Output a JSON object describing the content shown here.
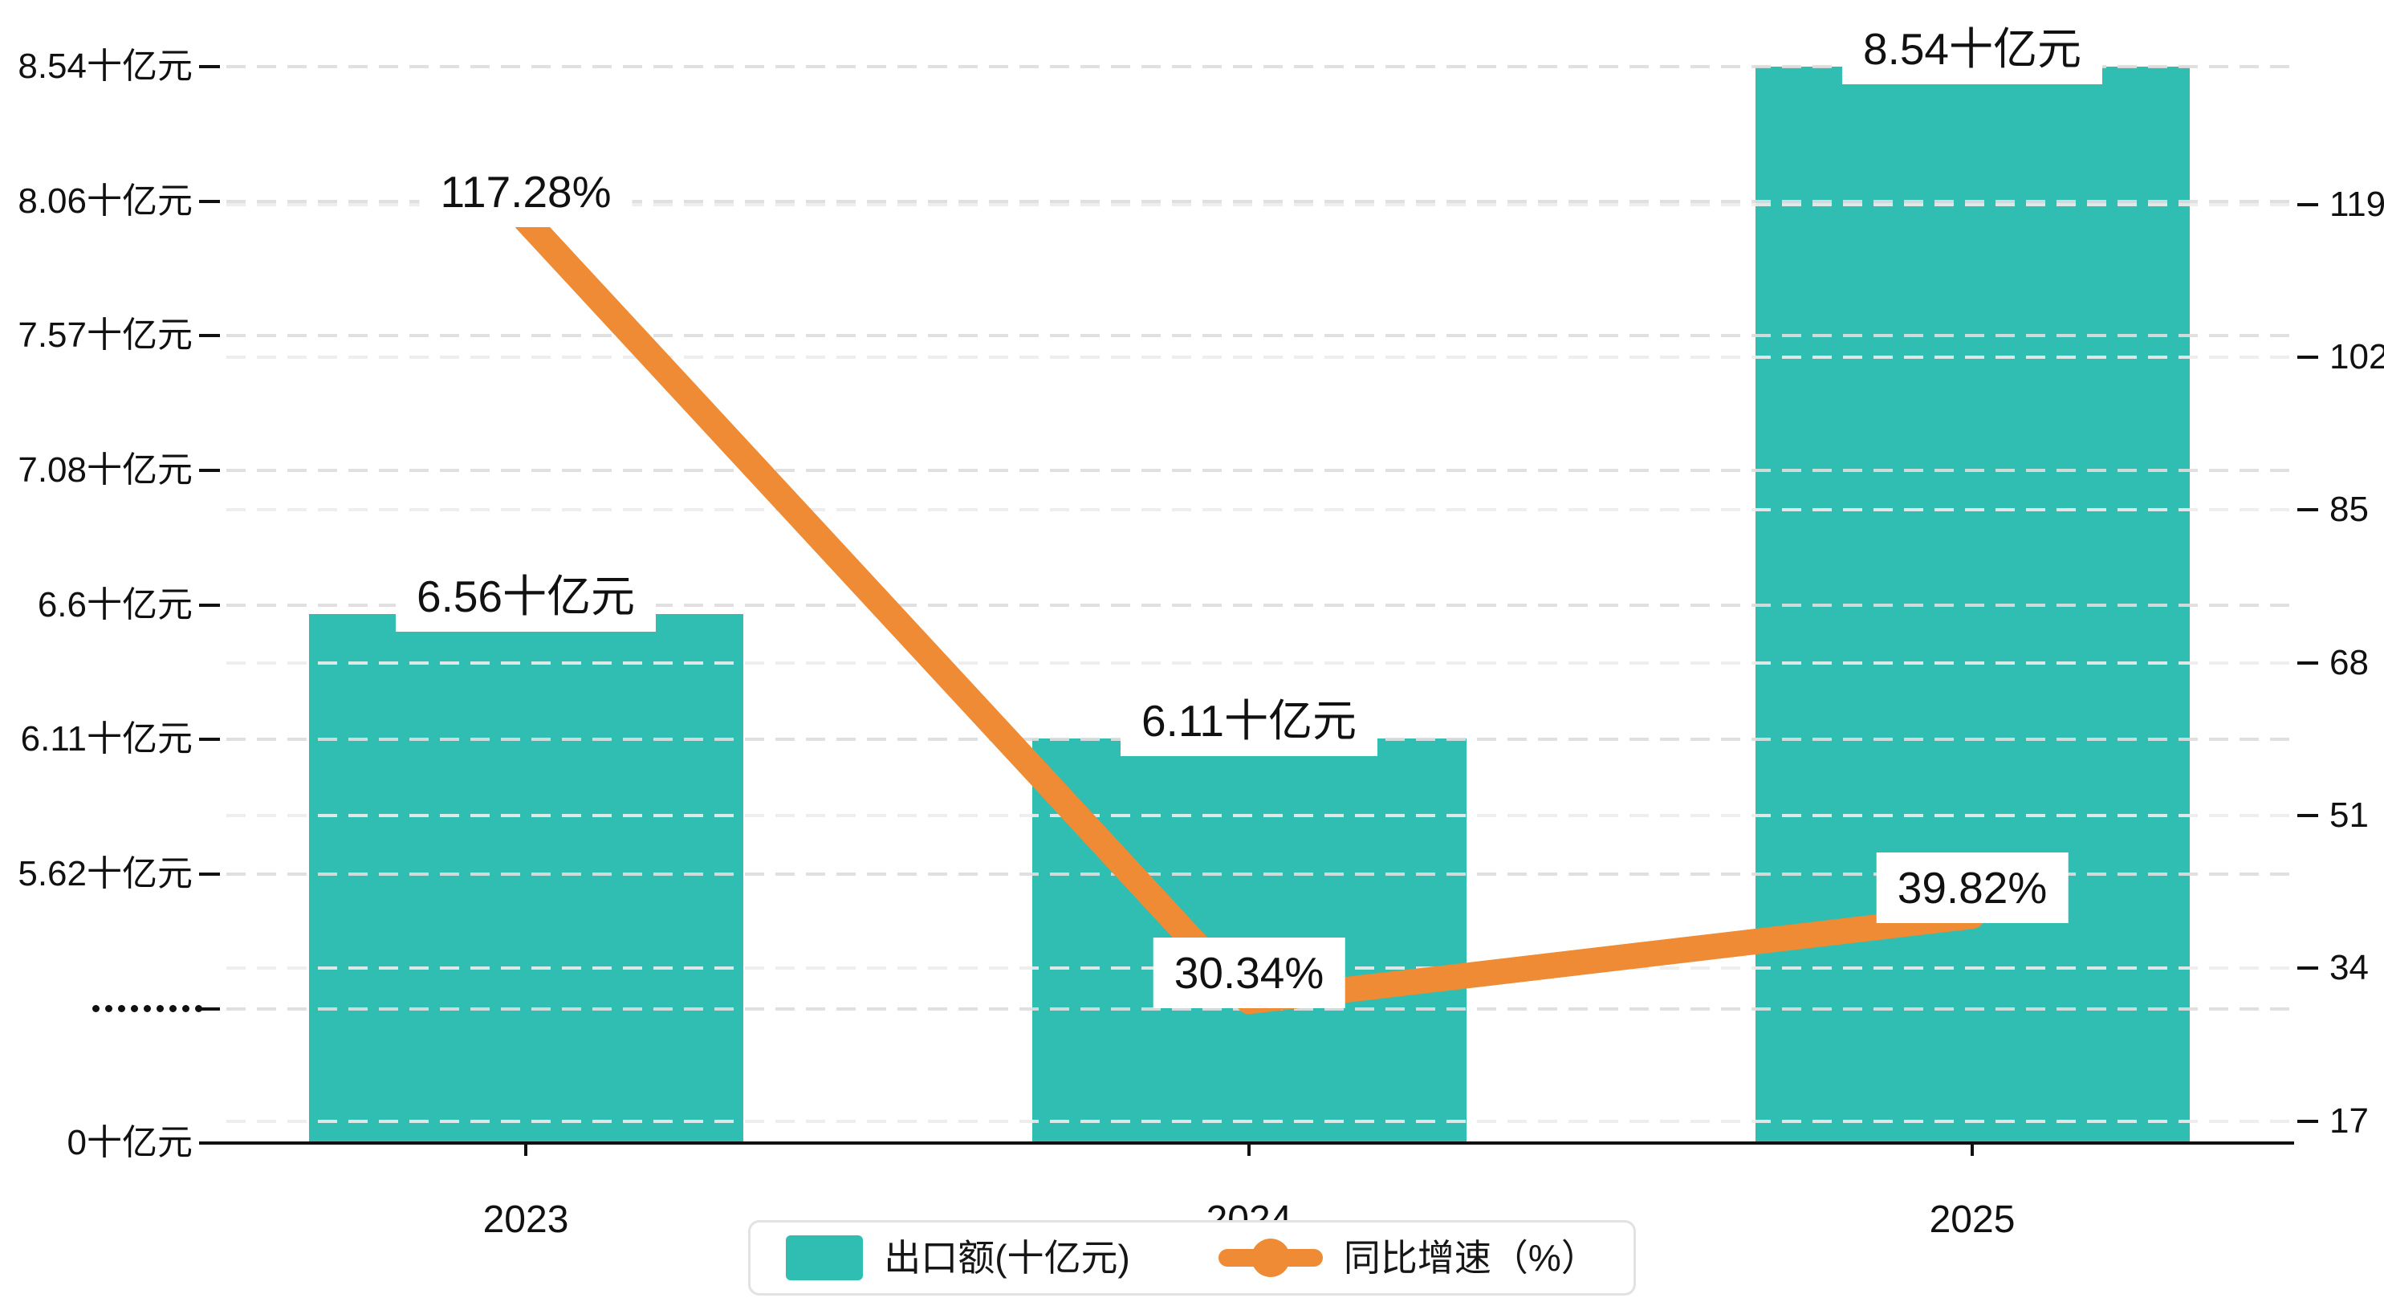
{
  "chart_data": {
    "type": "combo",
    "title": "",
    "categories": [
      "2023",
      "2024",
      "2025"
    ],
    "series": [
      {
        "name": "出口额(十亿元)",
        "type": "bar",
        "axis": "left",
        "values": [
          6.56,
          6.11,
          8.54
        ],
        "data_labels": [
          "6.56十亿元",
          "6.11十亿元",
          "8.54十亿元"
        ],
        "color": "#2fbeb1"
      },
      {
        "name": "同比增速（%）",
        "type": "line",
        "axis": "right",
        "values": [
          117.28,
          30.34,
          39.82
        ],
        "data_labels": [
          "117.28%",
          "30.34%",
          "39.82%"
        ],
        "color": "#ee8b34"
      }
    ],
    "left_axis": {
      "tick_labels": [
        "8.54十亿元",
        "8.06十亿元",
        "7.57十亿元",
        "7.08十亿元",
        "6.6十亿元",
        "6.11十亿元",
        "5.62十亿元",
        "•••••••••",
        "0十亿元"
      ],
      "tick_values": [
        8.54,
        8.06,
        7.57,
        7.08,
        6.6,
        6.11,
        5.62,
        null,
        0
      ],
      "break_index": 7,
      "range_shown": [
        5.62,
        8.54
      ]
    },
    "right_axis": {
      "tick_labels": [
        "119",
        "102",
        "85",
        "68",
        "51",
        "34",
        "17"
      ],
      "tick_values": [
        119,
        102,
        85,
        68,
        51,
        34,
        17
      ]
    },
    "grid": {
      "horizontal_dashed": true
    },
    "legend_position": "bottom"
  },
  "legend": {
    "items": [
      {
        "label": "出口额(十亿元)",
        "marker": "bar",
        "color": "#2fbeb1"
      },
      {
        "label": "同比增速（%）",
        "marker": "line",
        "color": "#ee8b34"
      }
    ]
  }
}
